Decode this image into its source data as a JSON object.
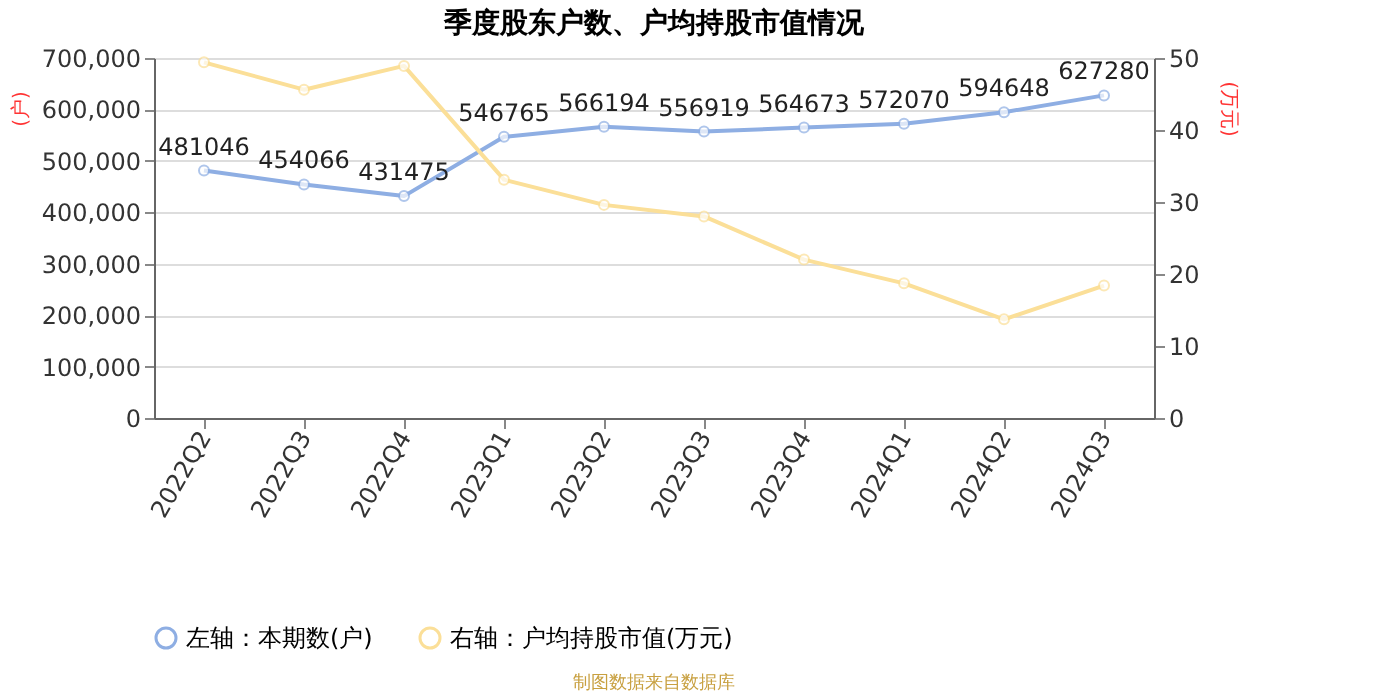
{
  "chart_data": {
    "type": "line",
    "title": "季度股东户数、户均持股市值情况",
    "categories": [
      "2022Q2",
      "2022Q3",
      "2022Q4",
      "2023Q1",
      "2023Q2",
      "2023Q3",
      "2023Q4",
      "2024Q1",
      "2024Q2",
      "2024Q3"
    ],
    "series": [
      {
        "name": "左轴：本期数(户)",
        "color": "#8eaee3",
        "values": [
          481046,
          454066,
          431475,
          546765,
          566194,
          556919,
          564673,
          572070,
          594648,
          627280
        ],
        "data_labels": true
      },
      {
        "name": "右轴：户均持股市值(万元)",
        "color": "#fbdf98",
        "axis": "y2",
        "values": [
          49.4,
          45.6,
          48.9,
          33.1,
          29.6,
          28.0,
          22.0,
          18.7,
          13.7,
          18.4
        ]
      }
    ],
    "ylabel": "(户)",
    "y2label": "(万元)",
    "ylim": [
      0,
      700000
    ],
    "yticks": [
      0,
      {
        "value": 100000,
        "label": "100,000"
      },
      {
        "value": 200000,
        "label": "200,000"
      },
      {
        "value": 300000,
        "label": "300,000"
      },
      {
        "value": 400000,
        "label": "400,000"
      },
      {
        "value": 500000,
        "label": "500,000"
      },
      {
        "value": 600000,
        "label": "600,000"
      },
      {
        "value": 700000,
        "label": "700,000"
      }
    ],
    "y2lim": [
      0,
      50
    ],
    "y2ticks": [
      0,
      10,
      20,
      30,
      40,
      50
    ],
    "grid": "y",
    "legend": "bottom",
    "marker": "circle",
    "line_style": "solid",
    "annotations": [
      "制图数据来自数据库"
    ]
  }
}
